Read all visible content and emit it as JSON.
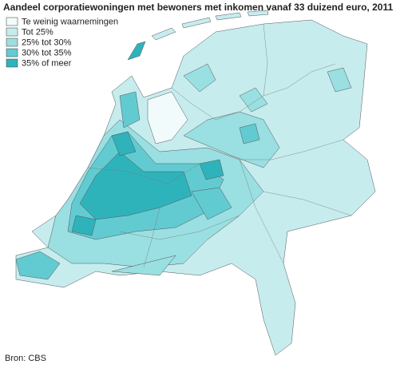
{
  "title": "Aandeel corporatiewoningen met bewoners met inkomen vanaf 33 duizend euro, 2011",
  "legend": [
    {
      "label": "Te weinig waarnemingen",
      "color": "#f2fbfb"
    },
    {
      "label": "Tot 25%",
      "color": "#c6ecee"
    },
    {
      "label": "25% tot 30%",
      "color": "#9adfe2"
    },
    {
      "label": "30% tot 35%",
      "color": "#62cbd1"
    },
    {
      "label": "35% of meer",
      "color": "#2eb3bb"
    }
  ],
  "source": "Bron: CBS"
}
